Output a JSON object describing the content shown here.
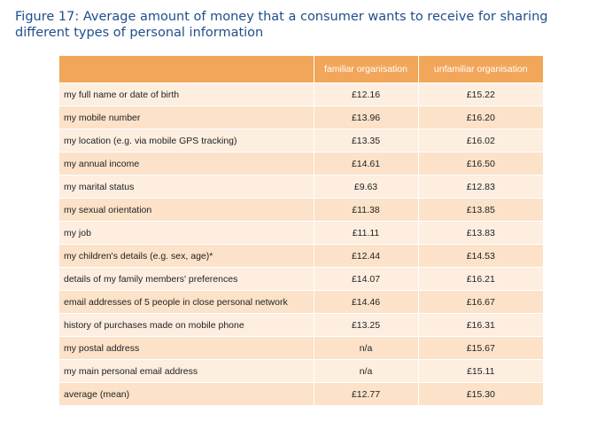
{
  "caption": "Figure 17: Average amount of money that a consumer wants to receive for sharing different types of personal information",
  "table": {
    "headers": [
      "",
      "familiar organisation",
      "unfamiliar organisation"
    ],
    "rows": [
      {
        "label": "my full name or date of birth",
        "familiar": "£12.16",
        "unfamiliar": "£15.22"
      },
      {
        "label": "my mobile number",
        "familiar": "£13.96",
        "unfamiliar": "£16.20"
      },
      {
        "label": "my location (e.g. via mobile GPS tracking)",
        "familiar": "£13.35",
        "unfamiliar": "£16.02"
      },
      {
        "label": "my annual income",
        "familiar": "£14.61",
        "unfamiliar": "£16.50"
      },
      {
        "label": "my marital status",
        "familiar": "£9.63",
        "unfamiliar": "£12.83"
      },
      {
        "label": "my sexual orientation",
        "familiar": "£11.38",
        "unfamiliar": "£13.85"
      },
      {
        "label": "my job",
        "familiar": "£11.11",
        "unfamiliar": "£13.83"
      },
      {
        "label": "my children's details (e.g. sex, age)*",
        "familiar": "£12.44",
        "unfamiliar": "£14.53"
      },
      {
        "label": "details of my family members' preferences",
        "familiar": "£14.07",
        "unfamiliar": "£16.21"
      },
      {
        "label": "email addresses of 5 people in close personal network",
        "familiar": "£14.46",
        "unfamiliar": "£16.67"
      },
      {
        "label": "history of purchases made on mobile phone",
        "familiar": "£13.25",
        "unfamiliar": "£16.31"
      },
      {
        "label": "my postal address",
        "familiar": "n/a",
        "unfamiliar": "£15.67"
      },
      {
        "label": "my main personal email address",
        "familiar": "n/a",
        "unfamiliar": "£15.11"
      },
      {
        "label": "average (mean)",
        "familiar": "£12.77",
        "unfamiliar": "£15.30"
      }
    ]
  },
  "colors": {
    "caption": "#1f4e8c",
    "header_bg": "#f2a65a",
    "row_light": "#fdeee0",
    "row_dark": "#fbe2c9"
  }
}
